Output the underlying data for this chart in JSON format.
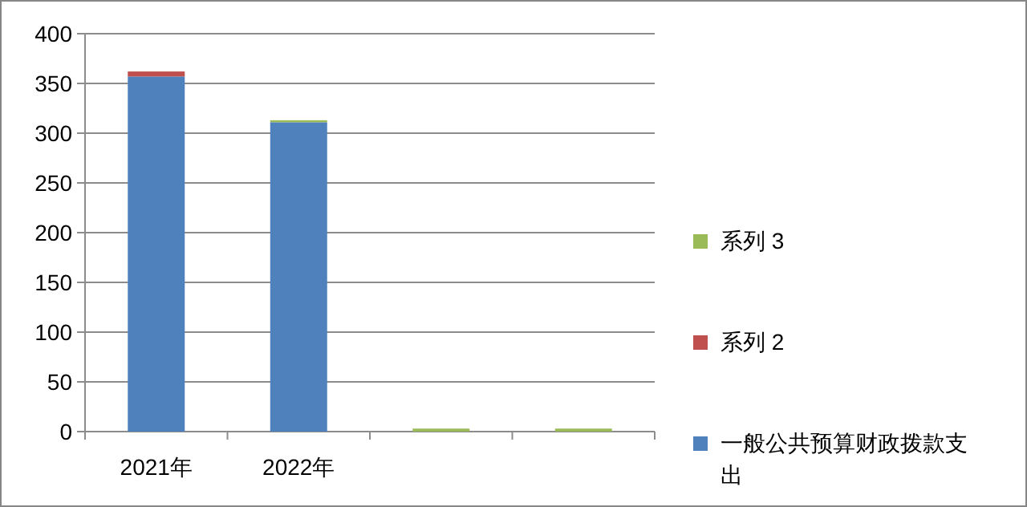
{
  "chart_data": {
    "type": "bar",
    "stacked": true,
    "categories": [
      "2021年",
      "2022年",
      null,
      null
    ],
    "series": [
      {
        "name": "一般公共预算财政拨款支出",
        "color": "#4f81bd",
        "values": [
          357,
          311,
          0,
          0
        ]
      },
      {
        "name": "系列 2",
        "color": "#c0504d",
        "values": [
          5,
          0,
          0,
          0
        ]
      },
      {
        "name": "系列 3",
        "color": "#9bbb59",
        "values": [
          0,
          2,
          3,
          3
        ]
      }
    ],
    "ylim": [
      0,
      400
    ],
    "yticks": [
      0,
      50,
      100,
      150,
      200,
      250,
      300,
      350,
      400
    ],
    "grid": "y",
    "legend": "right"
  }
}
